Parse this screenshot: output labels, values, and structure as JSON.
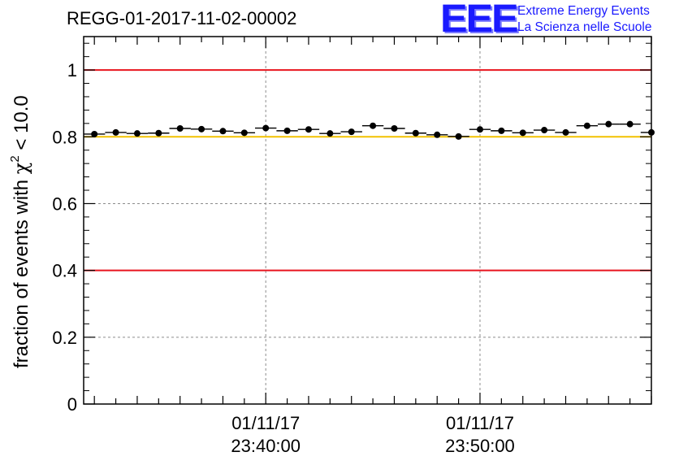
{
  "title": "REGG-01-2017-11-02-00002",
  "logo": {
    "mark": "EEE",
    "line1": "Extreme Energy Events",
    "line2": "La Scienza nelle Scuole"
  },
  "colors": {
    "threshold_line": "#e8141e",
    "reference_line": "#f2c200",
    "marker": "#000000",
    "grid": "#8c8c8c",
    "brand": "#1a1aff"
  },
  "chart_data": {
    "type": "scatter",
    "title": "REGG-01-2017-11-02-00002",
    "xlabel": "",
    "ylabel": "fraction of events with χ² < 10.0",
    "ylabel_parts": {
      "prefix": "fraction of events with ",
      "chi": "χ",
      "exponent": "2",
      "suffix": " < 10.0"
    },
    "x_unit": "minutes relative to 01/11/17 23:40:00",
    "xlim": [
      -8.5,
      18.0
    ],
    "ylim": [
      0,
      1.1
    ],
    "grid": true,
    "y_ticks": [
      {
        "value": 0,
        "label": "0"
      },
      {
        "value": 0.2,
        "label": "0.2"
      },
      {
        "value": 0.4,
        "label": "0.4"
      },
      {
        "value": 0.6,
        "label": "0.6"
      },
      {
        "value": 0.8,
        "label": "0.8"
      },
      {
        "value": 1.0,
        "label": "1"
      }
    ],
    "x_ticks": [
      {
        "value": 0,
        "date": "01/11/17",
        "time": "23:40:00"
      },
      {
        "value": 10,
        "date": "01/11/17",
        "time": "23:50:00"
      }
    ],
    "x_minor_step": 1,
    "bin_width_minutes": 1,
    "x": [
      -8,
      -7,
      -6,
      -5,
      -4,
      -3,
      -2,
      -1,
      0,
      1,
      2,
      3,
      4,
      5,
      6,
      7,
      8,
      9,
      10,
      11,
      12,
      13,
      14,
      15,
      16,
      17
    ],
    "values": [
      0.808,
      0.813,
      0.81,
      0.811,
      0.825,
      0.823,
      0.817,
      0.812,
      0.826,
      0.818,
      0.822,
      0.81,
      0.815,
      0.833,
      0.825,
      0.811,
      0.806,
      0.801,
      0.822,
      0.818,
      0.812,
      0.82,
      0.813,
      0.833,
      0.838,
      0.838
    ],
    "errors": [
      0.004,
      0.004,
      0.004,
      0.004,
      0.004,
      0.004,
      0.004,
      0.004,
      0.004,
      0.004,
      0.004,
      0.004,
      0.004,
      0.004,
      0.004,
      0.004,
      0.004,
      0.006,
      0.004,
      0.004,
      0.004,
      0.004,
      0.004,
      0.004,
      0.004,
      0.004
    ],
    "last_point": {
      "x": 18,
      "value": 0.813
    },
    "reference_lines": [
      {
        "y": 1.0,
        "color": "#e8141e"
      },
      {
        "y": 0.4,
        "color": "#e8141e"
      },
      {
        "y": 0.8,
        "color": "#f2c200"
      }
    ]
  }
}
